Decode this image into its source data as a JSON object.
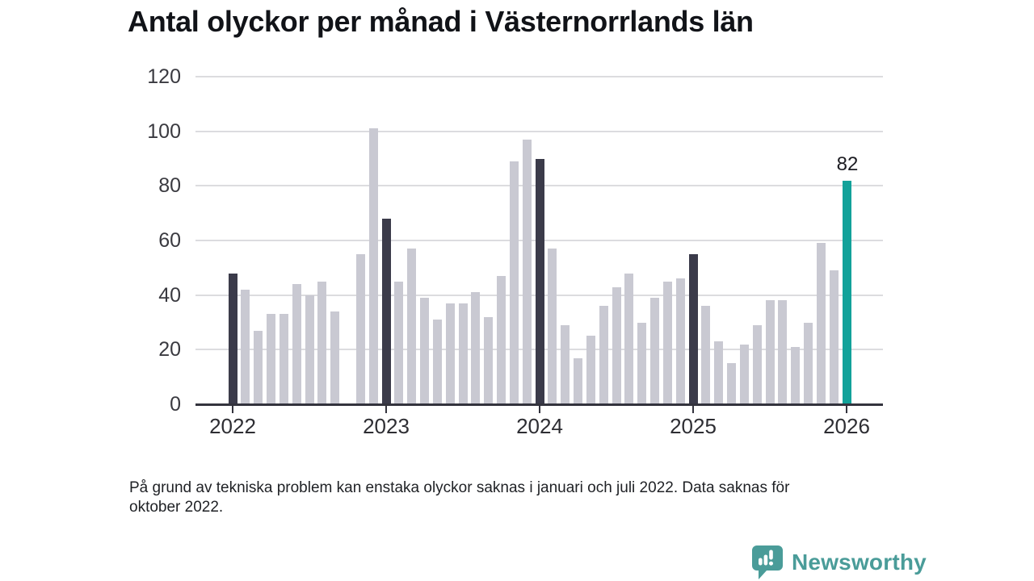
{
  "title": "Antal olyckor per månad i Västernorrlands län",
  "footnote": {
    "line1": "På grund av tekniska problem kan enstaka olyckor saknas i januari och juli 2022. Data saknas för",
    "line2": "oktober 2022."
  },
  "branding": {
    "logo_text": "Newsworthy",
    "logo_icon": "speech-bubble-bar-chart-icon",
    "logo_color": "#4a9c99"
  },
  "colors": {
    "bar_default": "#c9c9d2",
    "bar_january": "#3b3b4a",
    "bar_highlight": "#12a29a",
    "gridline": "#dcdcdf",
    "axis": "#33333d",
    "text": "#2e2e33"
  },
  "chart_data": {
    "type": "bar",
    "title": "Antal olyckor per månad i Västernorrlands län",
    "xlabel": "",
    "ylabel": "",
    "ylim": [
      0,
      120
    ],
    "yticks": [
      0,
      20,
      40,
      60,
      80,
      100,
      120
    ],
    "year_tick_labels": [
      "2022",
      "2023",
      "2024",
      "2025",
      "2026"
    ],
    "grid": true,
    "legend_position": "none",
    "missing_months": [
      "2022-10"
    ],
    "annotation": {
      "month": "2026-01",
      "label": "82"
    },
    "series": [
      {
        "name": "Antal olyckor",
        "points": [
          {
            "month": "2022-01",
            "value": 48,
            "role": "january"
          },
          {
            "month": "2022-02",
            "value": 42,
            "role": "default"
          },
          {
            "month": "2022-03",
            "value": 27,
            "role": "default"
          },
          {
            "month": "2022-04",
            "value": 33,
            "role": "default"
          },
          {
            "month": "2022-05",
            "value": 33,
            "role": "default"
          },
          {
            "month": "2022-06",
            "value": 44,
            "role": "default"
          },
          {
            "month": "2022-07",
            "value": 40,
            "role": "default"
          },
          {
            "month": "2022-08",
            "value": 45,
            "role": "default"
          },
          {
            "month": "2022-09",
            "value": 34,
            "role": "default"
          },
          {
            "month": "2022-10",
            "value": null,
            "role": "missing"
          },
          {
            "month": "2022-11",
            "value": 55,
            "role": "default"
          },
          {
            "month": "2022-12",
            "value": 101,
            "role": "default"
          },
          {
            "month": "2023-01",
            "value": 68,
            "role": "january"
          },
          {
            "month": "2023-02",
            "value": 45,
            "role": "default"
          },
          {
            "month": "2023-03",
            "value": 57,
            "role": "default"
          },
          {
            "month": "2023-04",
            "value": 39,
            "role": "default"
          },
          {
            "month": "2023-05",
            "value": 31,
            "role": "default"
          },
          {
            "month": "2023-06",
            "value": 37,
            "role": "default"
          },
          {
            "month": "2023-07",
            "value": 37,
            "role": "default"
          },
          {
            "month": "2023-08",
            "value": 41,
            "role": "default"
          },
          {
            "month": "2023-09",
            "value": 32,
            "role": "default"
          },
          {
            "month": "2023-10",
            "value": 47,
            "role": "default"
          },
          {
            "month": "2023-11",
            "value": 89,
            "role": "default"
          },
          {
            "month": "2023-12",
            "value": 97,
            "role": "default"
          },
          {
            "month": "2024-01",
            "value": 90,
            "role": "january"
          },
          {
            "month": "2024-02",
            "value": 57,
            "role": "default"
          },
          {
            "month": "2024-03",
            "value": 29,
            "role": "default"
          },
          {
            "month": "2024-04",
            "value": 17,
            "role": "default"
          },
          {
            "month": "2024-05",
            "value": 25,
            "role": "default"
          },
          {
            "month": "2024-06",
            "value": 36,
            "role": "default"
          },
          {
            "month": "2024-07",
            "value": 43,
            "role": "default"
          },
          {
            "month": "2024-08",
            "value": 48,
            "role": "default"
          },
          {
            "month": "2024-09",
            "value": 30,
            "role": "default"
          },
          {
            "month": "2024-10",
            "value": 39,
            "role": "default"
          },
          {
            "month": "2024-11",
            "value": 45,
            "role": "default"
          },
          {
            "month": "2024-12",
            "value": 46,
            "role": "default"
          },
          {
            "month": "2025-01",
            "value": 55,
            "role": "january"
          },
          {
            "month": "2025-02",
            "value": 36,
            "role": "default"
          },
          {
            "month": "2025-03",
            "value": 23,
            "role": "default"
          },
          {
            "month": "2025-04",
            "value": 15,
            "role": "default"
          },
          {
            "month": "2025-05",
            "value": 22,
            "role": "default"
          },
          {
            "month": "2025-06",
            "value": 29,
            "role": "default"
          },
          {
            "month": "2025-07",
            "value": 38,
            "role": "default"
          },
          {
            "month": "2025-08",
            "value": 38,
            "role": "default"
          },
          {
            "month": "2025-09",
            "value": 21,
            "role": "default"
          },
          {
            "month": "2025-10",
            "value": 30,
            "role": "default"
          },
          {
            "month": "2025-11",
            "value": 59,
            "role": "default"
          },
          {
            "month": "2025-12",
            "value": 49,
            "role": "default"
          },
          {
            "month": "2026-01",
            "value": 82,
            "role": "highlight"
          }
        ]
      }
    ]
  }
}
